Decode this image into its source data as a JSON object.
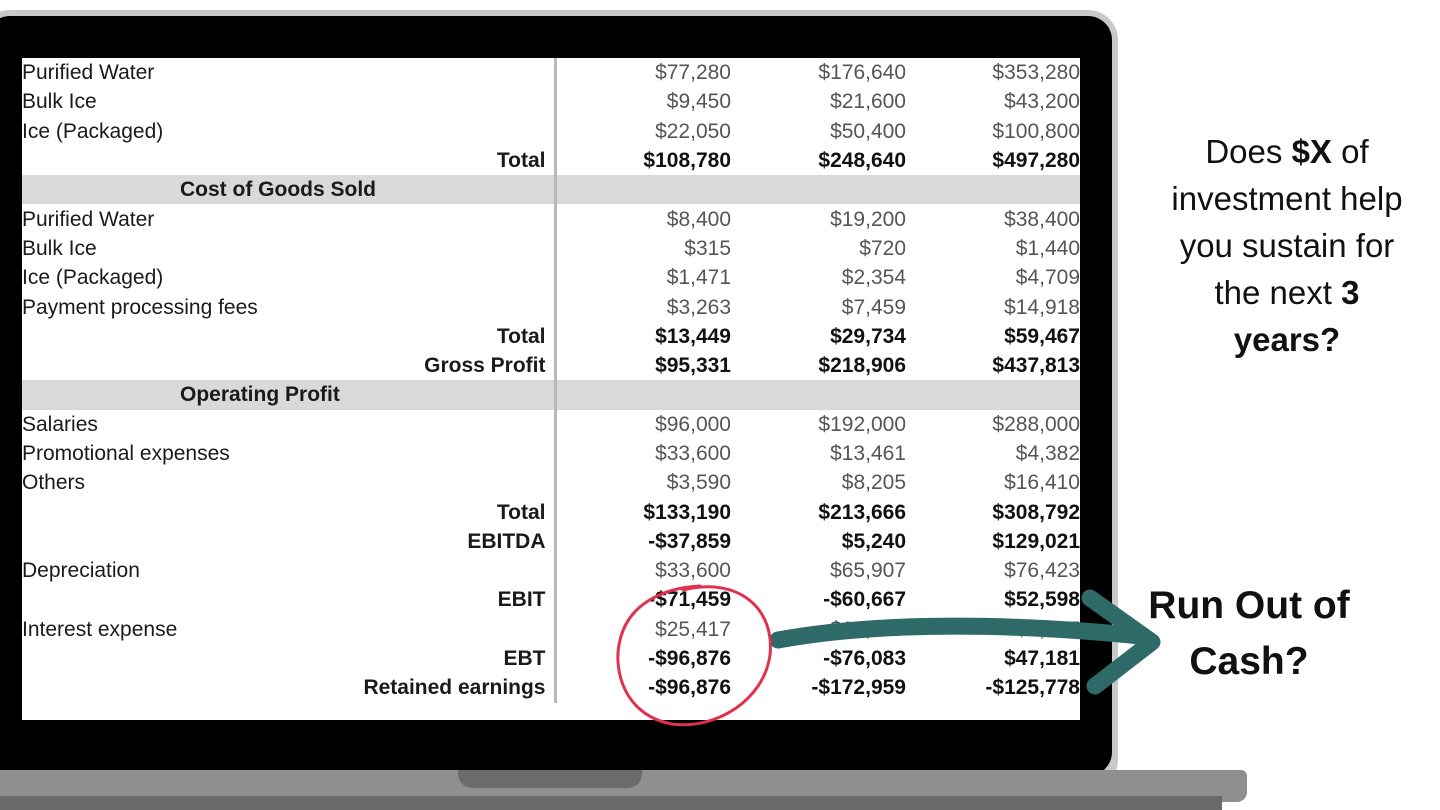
{
  "table": {
    "rows": [
      {
        "label": "Purified Water",
        "values": [
          "$77,280",
          "$176,640",
          "$353,280"
        ],
        "kind": "item"
      },
      {
        "label": "Bulk Ice",
        "values": [
          "$9,450",
          "$21,600",
          "$43,200"
        ],
        "kind": "item"
      },
      {
        "label": "Ice (Packaged)",
        "values": [
          "$22,050",
          "$50,400",
          "$100,800"
        ],
        "kind": "item"
      },
      {
        "label": "Total",
        "values": [
          "$108,780",
          "$248,640",
          "$497,280"
        ],
        "kind": "total"
      },
      {
        "label": "Cost of Goods Sold",
        "values": [
          "",
          "",
          ""
        ],
        "kind": "section"
      },
      {
        "label": "Purified Water",
        "values": [
          "$8,400",
          "$19,200",
          "$38,400"
        ],
        "kind": "item"
      },
      {
        "label": "Bulk Ice",
        "values": [
          "$315",
          "$720",
          "$1,440"
        ],
        "kind": "item"
      },
      {
        "label": "Ice (Packaged)",
        "values": [
          "$1,471",
          "$2,354",
          "$4,709"
        ],
        "kind": "item"
      },
      {
        "label": "Payment processing fees",
        "values": [
          "$3,263",
          "$7,459",
          "$14,918"
        ],
        "kind": "item"
      },
      {
        "label": "Total",
        "values": [
          "$13,449",
          "$29,734",
          "$59,467"
        ],
        "kind": "total"
      },
      {
        "label": "Gross Profit",
        "values": [
          "$95,331",
          "$218,906",
          "$437,813"
        ],
        "kind": "total"
      },
      {
        "label": "Operating Profit",
        "values": [
          "",
          "",
          ""
        ],
        "kind": "section"
      },
      {
        "label": "Salaries",
        "values": [
          "$96,000",
          "$192,000",
          "$288,000"
        ],
        "kind": "item"
      },
      {
        "label": "Promotional expenses",
        "values": [
          "$33,600",
          "$13,461",
          "$4,382"
        ],
        "kind": "item"
      },
      {
        "label": "Others",
        "values": [
          "$3,590",
          "$8,205",
          "$16,410"
        ],
        "kind": "item"
      },
      {
        "label": "Total",
        "values": [
          "$133,190",
          "$213,666",
          "$308,792"
        ],
        "kind": "total"
      },
      {
        "label": "EBITDA",
        "values": [
          "-$37,859",
          "$5,240",
          "$129,021"
        ],
        "kind": "total"
      },
      {
        "label": "Depreciation",
        "values": [
          "$33,600",
          "$65,907",
          "$76,423"
        ],
        "kind": "item"
      },
      {
        "label": "EBIT",
        "values": [
          "-$71,459",
          "-$60,667",
          "$52,598"
        ],
        "kind": "total"
      },
      {
        "label": "Interest expense",
        "values": [
          "$25,417",
          "$15,417",
          "$5,417"
        ],
        "kind": "item"
      },
      {
        "label": "EBT",
        "values": [
          "-$96,876",
          "-$76,083",
          "$47,181"
        ],
        "kind": "total"
      },
      {
        "label": "Retained earnings",
        "values": [
          "-$96,876",
          "-$172,959",
          "-$125,778"
        ],
        "kind": "total"
      }
    ]
  },
  "question": {
    "p1": "Does ",
    "amount": "$X",
    "p2": " of investment help you sustain for the next ",
    "years": "3 years?"
  },
  "callout": {
    "text": "Run Out of Cash?"
  },
  "colors": {
    "arrow": "#2e6b68",
    "circle": "#e0314f",
    "section_fill": "#d9d9d9"
  }
}
